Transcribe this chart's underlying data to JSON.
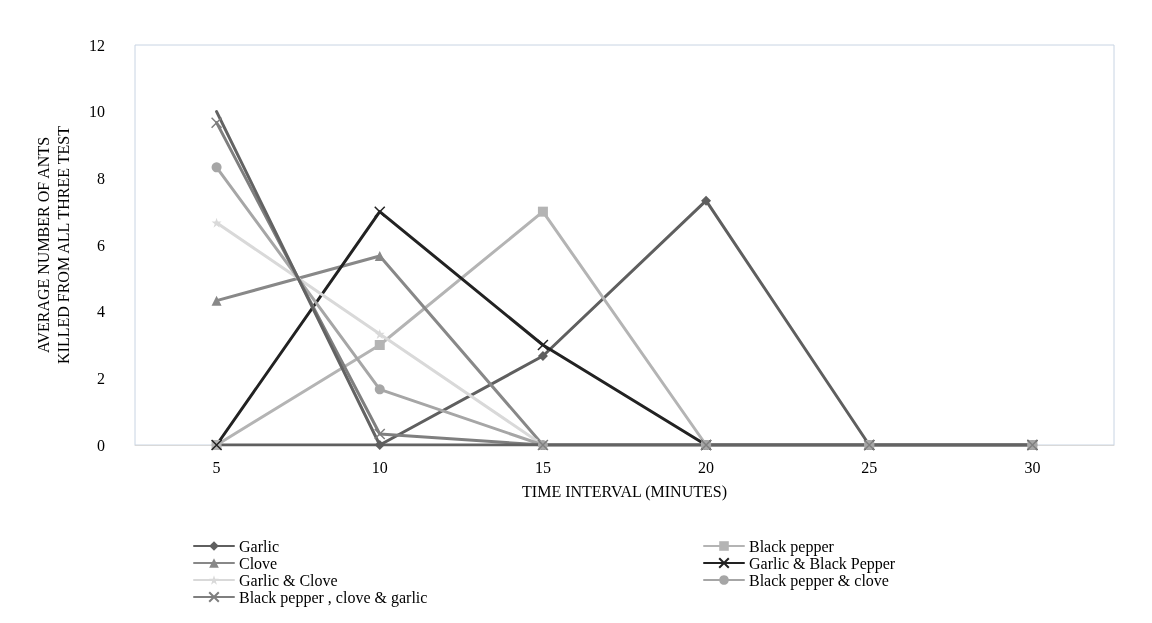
{
  "chart_data": {
    "type": "line",
    "xlabel": "TIME INTERVAL (MINUTES)",
    "ylabel": "AVERAGE NUMBER OF ANTS KILLED FROM ALL THREE TEST",
    "categories": [
      "5",
      "10",
      "15",
      "20",
      "25",
      "30"
    ],
    "ylim": [
      0,
      12
    ],
    "yticks": [
      0,
      2,
      4,
      6,
      8,
      10,
      12
    ],
    "grid": false,
    "legend": "bottom",
    "series": [
      {
        "name": "Garlic",
        "color": "#5f5f5f",
        "marker": "diamond",
        "values": [
          0,
          0,
          2.67,
          7.33,
          0,
          0
        ]
      },
      {
        "name": "Black pepper",
        "color": "#b4b4b4",
        "marker": "square",
        "values": [
          0,
          3,
          7,
          0,
          0,
          0
        ]
      },
      {
        "name": "Clove",
        "color": "#888888",
        "marker": "triangle",
        "values": [
          4.33,
          5.67,
          0,
          0,
          0,
          0
        ]
      },
      {
        "name": "Garlic & Black Pepper",
        "color": "#222222",
        "marker": "cross",
        "values": [
          0,
          7,
          3,
          0,
          0,
          0
        ]
      },
      {
        "name": "Garlic & Clove",
        "color": "#d9d9d9",
        "marker": "star",
        "values": [
          6.67,
          3.33,
          0,
          0,
          0,
          0
        ]
      },
      {
        "name": "Black pepper & clove",
        "color": "#a6a6a6",
        "marker": "circle",
        "values": [
          8.33,
          1.67,
          0,
          0,
          0,
          0
        ]
      },
      {
        "name": "Black pepper , clove & garlic",
        "color": "#7f7f7f",
        "marker": "cross",
        "values": [
          9.67,
          0.33,
          0,
          0,
          0,
          0
        ]
      },
      {
        "color": "#636363",
        "marker": "none",
        "values": [
          10,
          0,
          0,
          0,
          0,
          0
        ]
      }
    ]
  }
}
